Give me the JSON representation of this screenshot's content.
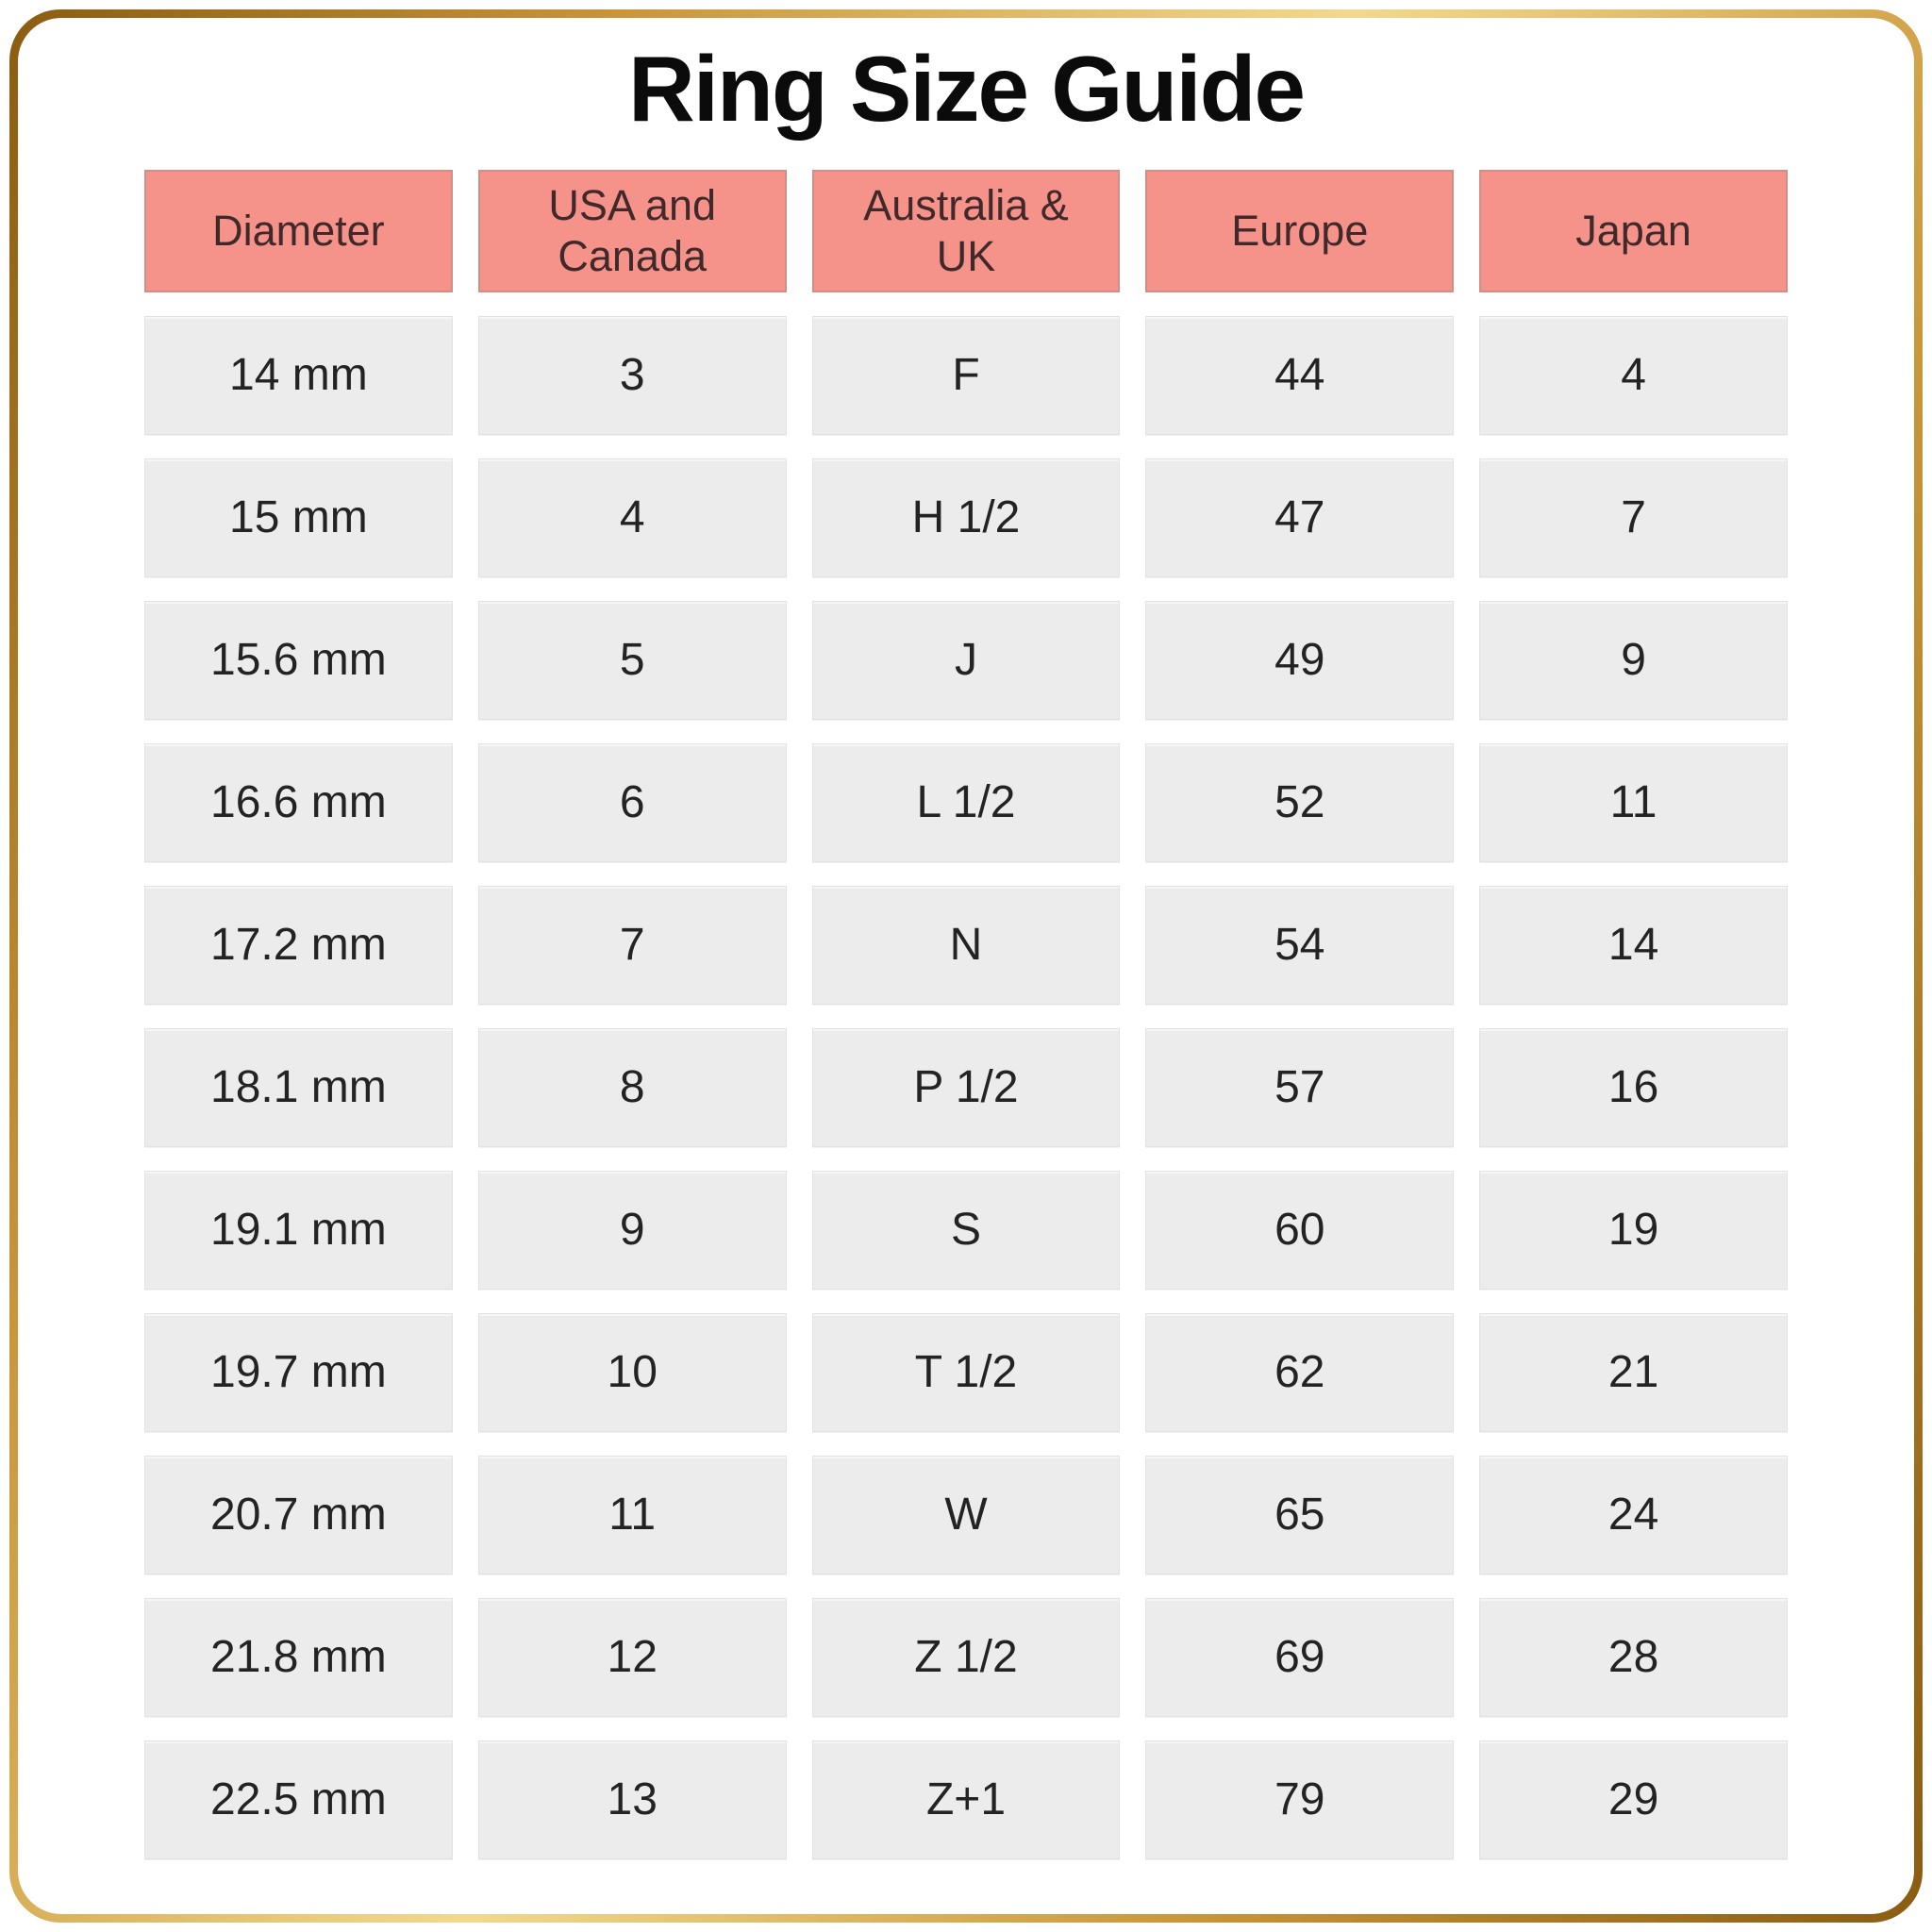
{
  "title": "Ring Size Guide",
  "chart_data": {
    "type": "table",
    "title": "Ring Size Guide",
    "columns": [
      "Diameter",
      "USA and Canada",
      "Australia & UK",
      "Europe",
      "Japan"
    ],
    "rows": [
      [
        "14 mm",
        "3",
        "F",
        "44",
        "4"
      ],
      [
        "15 mm",
        "4",
        "H 1/2",
        "47",
        "7"
      ],
      [
        "15.6 mm",
        "5",
        "J",
        "49",
        "9"
      ],
      [
        "16.6 mm",
        "6",
        "L 1/2",
        "52",
        "11"
      ],
      [
        "17.2 mm",
        "7",
        "N",
        "54",
        "14"
      ],
      [
        "18.1 mm",
        "8",
        "P 1/2",
        "57",
        "16"
      ],
      [
        "19.1 mm",
        "9",
        "S",
        "60",
        "19"
      ],
      [
        "19.7 mm",
        "10",
        "T 1/2",
        "62",
        "21"
      ],
      [
        "20.7 mm",
        "11",
        "W",
        "65",
        "24"
      ],
      [
        "21.8 mm",
        "12",
        "Z 1/2",
        "69",
        "28"
      ],
      [
        "22.5 mm",
        "13",
        "Z+1",
        "79",
        "29"
      ]
    ]
  },
  "colors": {
    "header_bg": "#f5928a",
    "header_border": "#cf8e86",
    "header_text": "#40292a",
    "cell_bg": "#ececec",
    "cell_border": "#e2e2e2",
    "cell_text": "#232323",
    "title_text": "#0b0b0b",
    "frame_gold_dark": "#8a5c12",
    "frame_gold_mid": "#c9963a",
    "frame_gold_light": "#f2d98e"
  }
}
